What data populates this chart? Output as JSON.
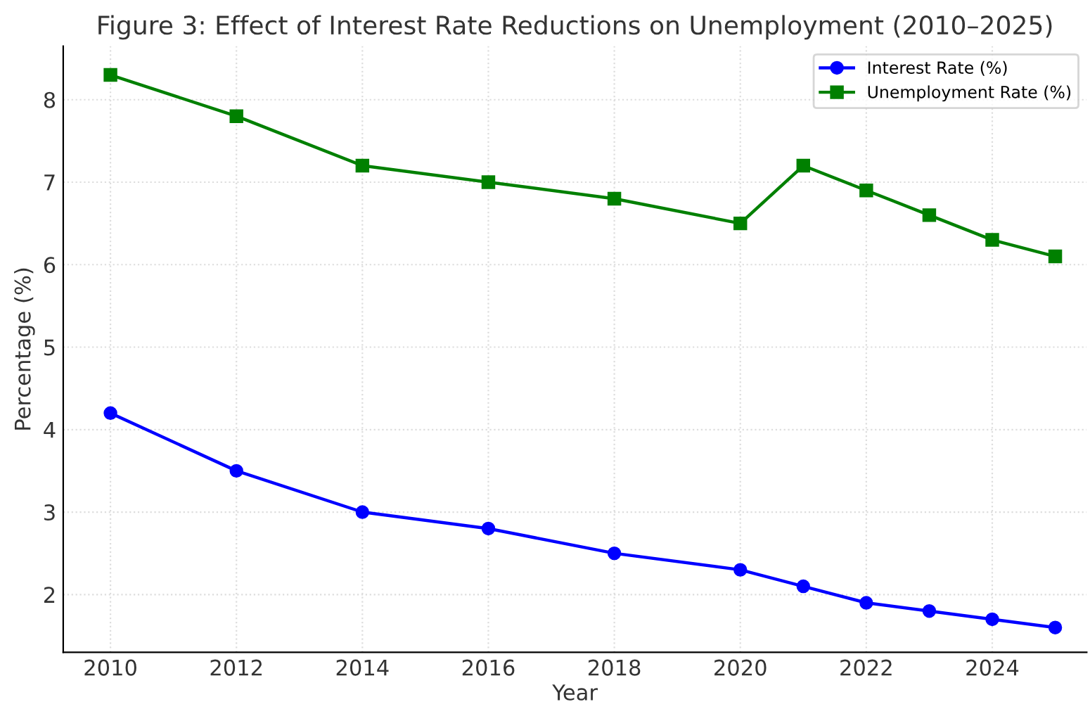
{
  "chart_data": {
    "type": "line",
    "title": "Figure 3: Effect of Interest Rate Reductions on Unemployment (2010–2025)",
    "xlabel": "Year",
    "ylabel": "Percentage (%)",
    "x": [
      2010,
      2012,
      2014,
      2016,
      2018,
      2020,
      2021,
      2022,
      2023,
      2024,
      2025
    ],
    "series": [
      {
        "name": "Interest Rate (%)",
        "color": "#0000ff",
        "marker": "circle",
        "values": [
          4.2,
          3.5,
          3.0,
          2.8,
          2.5,
          2.3,
          2.1,
          1.9,
          1.8,
          1.7,
          1.6
        ]
      },
      {
        "name": "Unemployment Rate (%)",
        "color": "#008000",
        "marker": "square",
        "values": [
          8.3,
          7.8,
          7.2,
          7.0,
          6.8,
          6.5,
          7.2,
          6.9,
          6.6,
          6.3,
          6.1
        ]
      }
    ],
    "xlim": [
      2009.25,
      2025.5
    ],
    "ylim": [
      1.3,
      8.65
    ],
    "xticks": [
      2010,
      2012,
      2014,
      2016,
      2018,
      2020,
      2022,
      2024
    ],
    "yticks": [
      2,
      3,
      4,
      5,
      6,
      7,
      8
    ],
    "grid": true,
    "legend": "top right",
    "line_style": "solid"
  }
}
